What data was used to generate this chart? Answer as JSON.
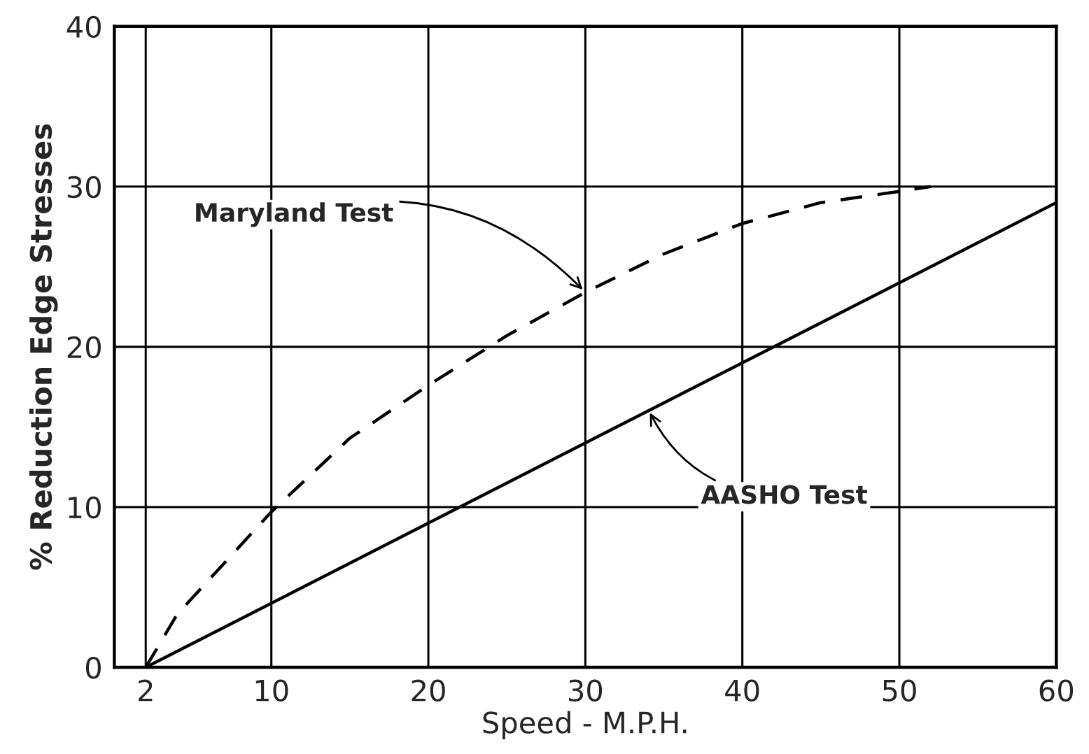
{
  "chart_data": {
    "type": "line",
    "xlabel": "Speed - M.P.H.",
    "ylabel": "% Reduction Edge Stresses",
    "xlim": [
      0,
      60
    ],
    "xticks": [
      2,
      10,
      20,
      30,
      40,
      50,
      60
    ],
    "ylim": [
      0,
      40
    ],
    "yticks": [
      0,
      10,
      20,
      30,
      40
    ],
    "grid": true,
    "marker": "none",
    "series": [
      {
        "color": "#000000",
        "line_style": "dashed",
        "x": [
          2,
          4,
          10,
          15,
          20,
          25,
          30,
          35,
          40,
          45,
          50,
          52
        ],
        "values": [
          0,
          3.3,
          9.7,
          14.3,
          17.6,
          20.7,
          23.4,
          25.8,
          27.7,
          29,
          29.7,
          30
        ]
      },
      {
        "color": "#000000",
        "line_style": "solid",
        "x": [
          2,
          60
        ],
        "values": [
          0,
          29
        ]
      }
    ],
    "annotations": [
      {
        "text": "Maryland Test",
        "x": 30,
        "y": 23.4
      },
      {
        "text": "AASHO Test",
        "x": 34,
        "y": 16.1
      }
    ]
  }
}
